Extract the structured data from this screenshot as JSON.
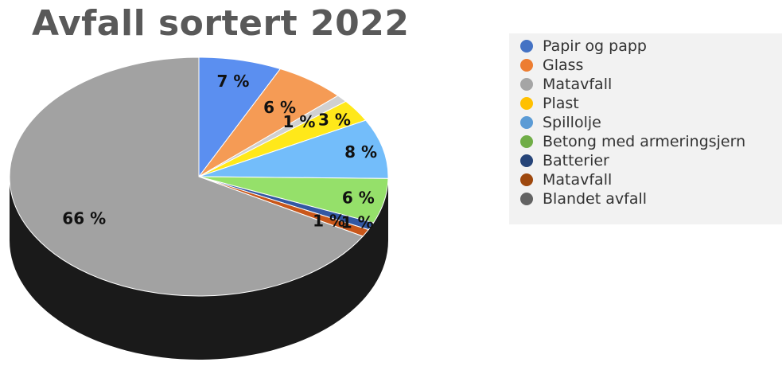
{
  "chart_data": {
    "type": "pie",
    "title": "Avfall sortert 2022",
    "series": [
      {
        "name": "Papir og papp",
        "value": 7,
        "label": "7 %",
        "color": "#4472c4",
        "fill": "#5b8ff0"
      },
      {
        "name": "Glass",
        "value": 6,
        "label": "6 %",
        "color": "#ed7d31",
        "fill": "#f59b55"
      },
      {
        "name": "Matavfall",
        "value": 1,
        "label": "1 %",
        "color": "#a5a5a5",
        "fill": "#d0d0d0"
      },
      {
        "name": "Plast",
        "value": 3,
        "label": "3 %",
        "color": "#ffc000",
        "fill": "#ffe81a"
      },
      {
        "name": "Spillolje",
        "value": 8,
        "label": "8 %",
        "color": "#5b9bd5",
        "fill": "#73bdfa"
      },
      {
        "name": "Betong med armeringsjern",
        "value": 6,
        "label": "6 %",
        "color": "#70ad47",
        "fill": "#95e06a"
      },
      {
        "name": "Batterier",
        "value": 1,
        "label": "1 %",
        "color": "#264478",
        "fill": "#3358a3"
      },
      {
        "name": "Matavfall",
        "value": 1,
        "label": "1 %",
        "color": "#9e480e",
        "fill": "#c9571a"
      },
      {
        "name": "Blandet avfall",
        "value": 66,
        "label": "66 %",
        "color": "#636363",
        "fill": "#a2a2a2"
      }
    ],
    "legend_position": "right"
  }
}
